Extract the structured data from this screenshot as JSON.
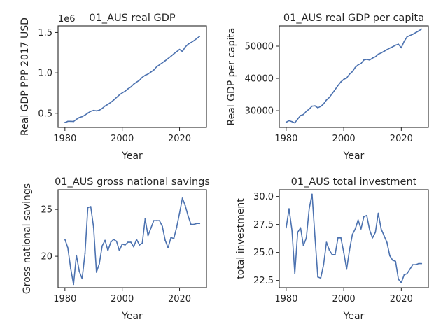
{
  "colors": {
    "line": "#4c72b0",
    "axis": "#262626",
    "background": "#ffffff"
  },
  "chart_data": [
    {
      "type": "line",
      "title": "01_AUS real GDP",
      "xlabel": "Year",
      "ylabel": "Real GDP PPP 2017 USD",
      "offset_text": "1e6",
      "xlim": [
        1977.6,
        2029.4
      ],
      "ylim": [
        0.325,
        1.582
      ],
      "xticks": [
        1980,
        2000,
        2020
      ],
      "yticks": [
        0.5,
        1.0,
        1.5
      ],
      "ytick_labels": [
        "0.5",
        "1.0",
        "1.5"
      ],
      "grid": false,
      "series": [
        {
          "x": [
            1980,
            1981,
            1982,
            1983,
            1984,
            1985,
            1986,
            1987,
            1988,
            1989,
            1990,
            1991,
            1992,
            1993,
            1994,
            1995,
            1996,
            1997,
            1998,
            1999,
            2000,
            2001,
            2002,
            2003,
            2004,
            2005,
            2006,
            2007,
            2008,
            2009,
            2010,
            2011,
            2012,
            2013,
            2014,
            2015,
            2016,
            2017,
            2018,
            2019,
            2020,
            2021,
            2022,
            2023,
            2024,
            2025,
            2026,
            2027
          ],
          "y": [
            0.385,
            0.4,
            0.4,
            0.398,
            0.425,
            0.447,
            0.458,
            0.478,
            0.502,
            0.525,
            0.535,
            0.53,
            0.538,
            0.56,
            0.59,
            0.61,
            0.635,
            0.663,
            0.695,
            0.727,
            0.752,
            0.772,
            0.802,
            0.825,
            0.86,
            0.885,
            0.908,
            0.945,
            0.97,
            0.985,
            1.01,
            1.035,
            1.075,
            1.1,
            1.125,
            1.15,
            1.178,
            1.205,
            1.235,
            1.262,
            1.29,
            1.265,
            1.32,
            1.355,
            1.375,
            1.398,
            1.425,
            1.452
          ]
        }
      ]
    },
    {
      "type": "line",
      "title": "01_AUS real GDP per capita",
      "xlabel": "Year",
      "ylabel": "Real GDP per capita",
      "xlim": [
        1977.6,
        2029.4
      ],
      "ylim": [
        24800,
        56300
      ],
      "xticks": [
        1980,
        2000,
        2020
      ],
      "yticks": [
        30000,
        40000,
        50000
      ],
      "ytick_labels": [
        "30000",
        "40000",
        "50000"
      ],
      "grid": false,
      "series": [
        {
          "x": [
            1980,
            1981,
            1982,
            1983,
            1984,
            1985,
            1986,
            1987,
            1988,
            1989,
            1990,
            1991,
            1992,
            1993,
            1994,
            1995,
            1996,
            1997,
            1998,
            1999,
            2000,
            2001,
            2002,
            2003,
            2004,
            2005,
            2006,
            2007,
            2008,
            2009,
            2010,
            2011,
            2012,
            2013,
            2014,
            2015,
            2016,
            2017,
            2018,
            2019,
            2020,
            2021,
            2022,
            2023,
            2024,
            2025,
            2026,
            2027
          ],
          "y": [
            26400,
            26900,
            26600,
            26200,
            27400,
            28500,
            28800,
            29800,
            30500,
            31400,
            31500,
            30900,
            31300,
            32100,
            33300,
            34100,
            35300,
            36500,
            37800,
            38900,
            39700,
            40100,
            41300,
            42100,
            43400,
            44200,
            44600,
            45700,
            45900,
            45700,
            46300,
            46700,
            47500,
            47900,
            48400,
            48900,
            49400,
            49800,
            50300,
            50600,
            49500,
            51500,
            52900,
            53300,
            53700,
            54200,
            54700,
            55300
          ]
        }
      ]
    },
    {
      "type": "line",
      "title": "01_AUS gross national savings",
      "xlabel": "Year",
      "ylabel": "Gross national savings",
      "xlim": [
        1977.6,
        2029.4
      ],
      "ylim": [
        16.65,
        27.1
      ],
      "xticks": [
        1980,
        2000,
        2020
      ],
      "yticks": [
        20,
        25
      ],
      "ytick_labels": [
        "20",
        "25"
      ],
      "grid": false,
      "series": [
        {
          "x": [
            1980,
            1981,
            1982,
            1983,
            1984,
            1985,
            1986,
            1987,
            1988,
            1989,
            1990,
            1991,
            1992,
            1993,
            1994,
            1995,
            1996,
            1997,
            1998,
            1999,
            2000,
            2001,
            2002,
            2003,
            2004,
            2005,
            2006,
            2007,
            2008,
            2009,
            2010,
            2011,
            2012,
            2013,
            2014,
            2015,
            2016,
            2017,
            2018,
            2019,
            2020,
            2021,
            2022,
            2023,
            2024,
            2025,
            2026,
            2027
          ],
          "y": [
            21.8,
            20.9,
            18.7,
            17.0,
            20.1,
            18.4,
            17.6,
            20.3,
            25.2,
            25.3,
            23.1,
            18.3,
            19.2,
            21.1,
            21.7,
            20.6,
            21.5,
            21.8,
            21.6,
            20.6,
            21.3,
            21.2,
            21.5,
            21.5,
            21.0,
            21.8,
            21.2,
            21.4,
            24.0,
            22.2,
            23.0,
            23.8,
            23.8,
            23.8,
            23.2,
            21.7,
            20.9,
            22.0,
            21.9,
            23.1,
            24.6,
            26.2,
            25.4,
            24.3,
            23.4,
            23.4,
            23.5,
            23.5
          ]
        }
      ]
    },
    {
      "type": "line",
      "title": "01_AUS total investment",
      "xlabel": "Year",
      "ylabel": "total investment",
      "xlim": [
        1977.6,
        2029.4
      ],
      "ylim": [
        21.85,
        30.6
      ],
      "xticks": [
        1980,
        2000,
        2020
      ],
      "yticks": [
        22.5,
        25.0,
        27.5,
        30.0
      ],
      "ytick_labels": [
        "22.5",
        "25.0",
        "27.5",
        "30.0"
      ],
      "grid": false,
      "series": [
        {
          "x": [
            1980,
            1981,
            1982,
            1983,
            1984,
            1985,
            1986,
            1987,
            1988,
            1989,
            1990,
            1991,
            1992,
            1993,
            1994,
            1995,
            1996,
            1997,
            1998,
            1999,
            2000,
            2001,
            2002,
            2003,
            2004,
            2005,
            2006,
            2007,
            2008,
            2009,
            2010,
            2011,
            2012,
            2013,
            2014,
            2015,
            2016,
            2017,
            2018,
            2019,
            2020,
            2021,
            2022,
            2023,
            2024,
            2025,
            2026,
            2027
          ],
          "y": [
            27.2,
            28.9,
            27.0,
            23.1,
            26.8,
            27.2,
            25.6,
            26.3,
            28.9,
            30.2,
            26.4,
            22.8,
            22.7,
            23.9,
            25.9,
            25.2,
            24.8,
            24.8,
            26.3,
            26.3,
            25.0,
            23.5,
            25.2,
            26.6,
            27.1,
            27.9,
            27.1,
            28.2,
            28.3,
            27.0,
            26.3,
            26.8,
            28.5,
            27.1,
            26.5,
            25.9,
            24.7,
            24.3,
            24.2,
            22.6,
            22.3,
            23.0,
            23.1,
            23.5,
            23.9,
            23.9,
            24.0,
            24.0
          ]
        }
      ]
    }
  ]
}
